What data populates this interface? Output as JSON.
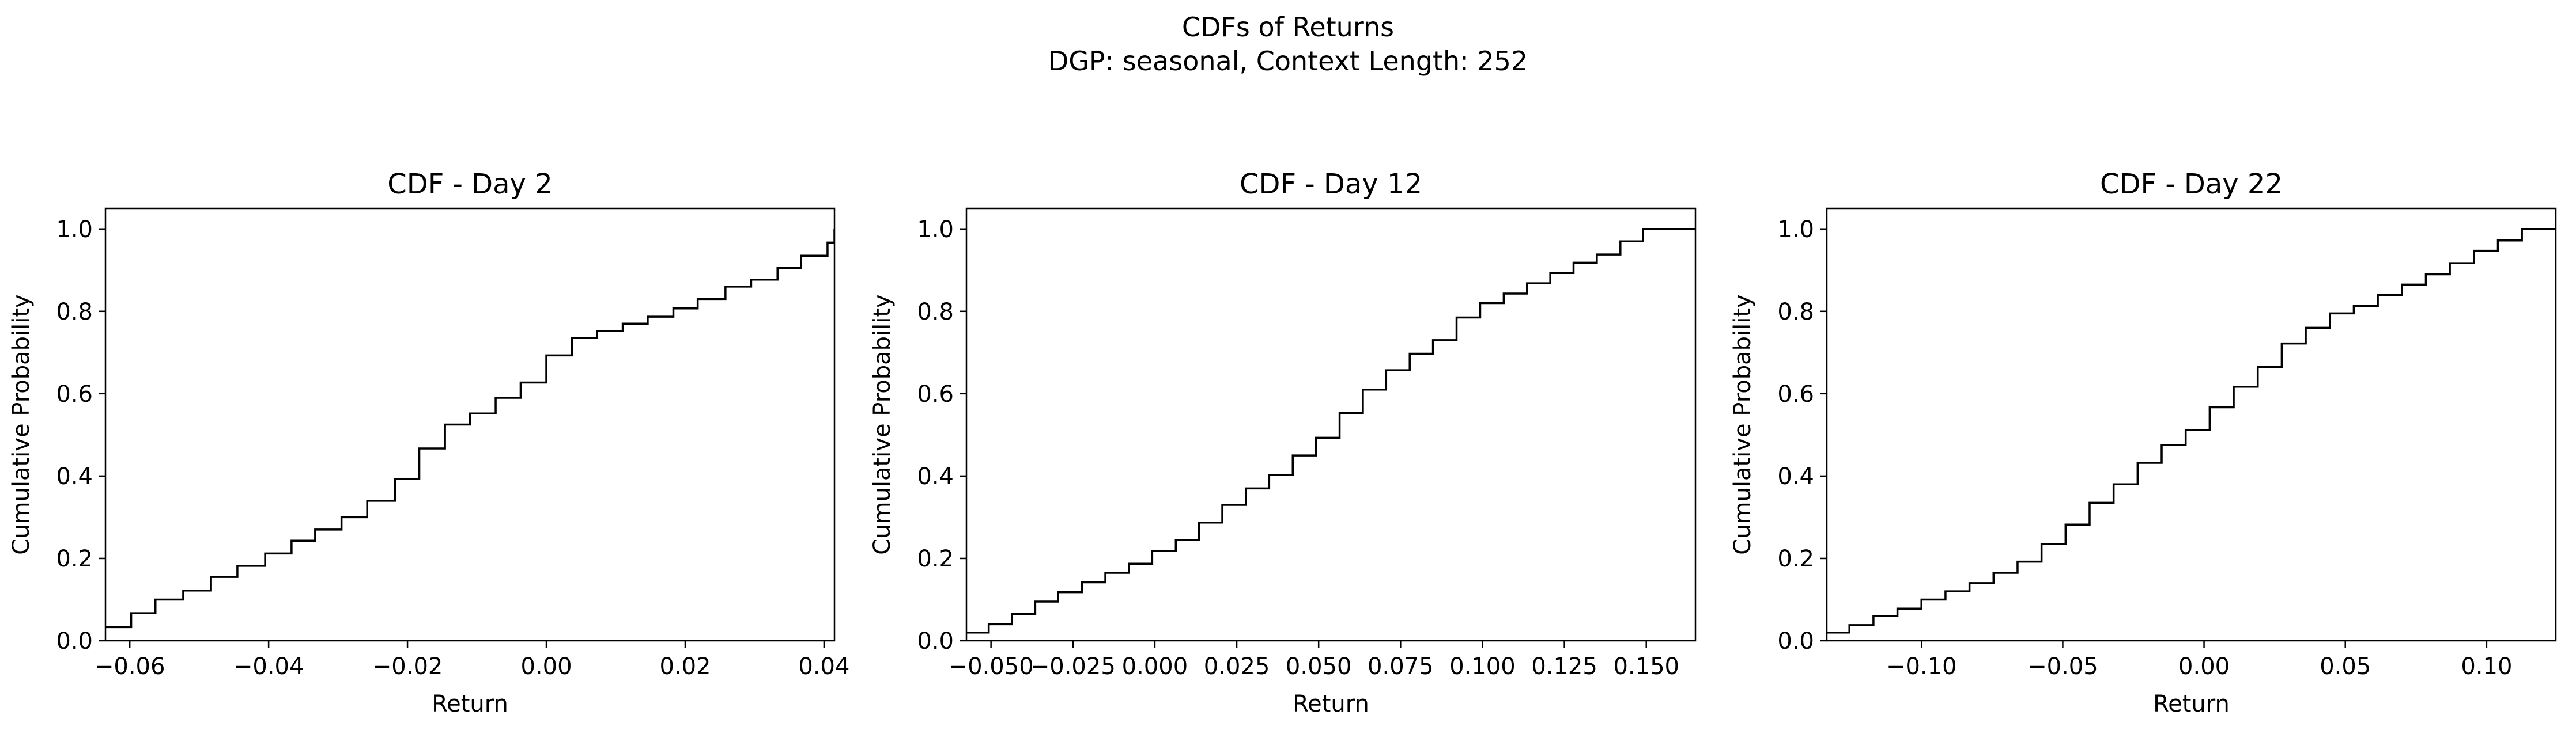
{
  "figure": {
    "title_line1": "CDFs of Returns",
    "title_line2": "DGP: seasonal, Context Length: 252"
  },
  "colors": {
    "line": "#000000",
    "axes": "#000000",
    "background": "#ffffff"
  },
  "chart_data": [
    {
      "type": "line",
      "step": "post",
      "title": "CDF - Day 2",
      "xlabel": "Return",
      "ylabel": "Cumulative Probability",
      "xlim": [
        -0.0635,
        0.0415
      ],
      "ylim": [
        0,
        1.05
      ],
      "xticks": [
        -0.06,
        -0.04,
        -0.02,
        0.0,
        0.02,
        0.04
      ],
      "xtick_labels": [
        "−0.06",
        "−0.04",
        "−0.02",
        "0.00",
        "0.02",
        "0.04"
      ],
      "yticks": [
        0.0,
        0.2,
        0.4,
        0.6,
        0.8,
        1.0
      ],
      "ytick_labels": [
        "0.0",
        "0.2",
        "0.4",
        "0.6",
        "0.8",
        "1.0"
      ],
      "grid": false,
      "x": [
        -0.0635,
        -0.0598,
        -0.0563,
        -0.0523,
        -0.0483,
        -0.0445,
        -0.0405,
        -0.0367,
        -0.0333,
        -0.0295,
        -0.0258,
        -0.0218,
        -0.0183,
        -0.0146,
        -0.011,
        -0.0073,
        -0.0037,
        0.0,
        0.0037,
        0.0073,
        0.011,
        0.0146,
        0.0183,
        0.0218,
        0.0258,
        0.0295,
        0.0333,
        0.0367,
        0.0405,
        0.0415
      ],
      "y": [
        0.033,
        0.067,
        0.1,
        0.122,
        0.155,
        0.182,
        0.212,
        0.243,
        0.27,
        0.3,
        0.34,
        0.393,
        0.467,
        0.525,
        0.552,
        0.59,
        0.627,
        0.693,
        0.735,
        0.752,
        0.77,
        0.787,
        0.807,
        0.83,
        0.86,
        0.877,
        0.905,
        0.935,
        0.967,
        1.0
      ]
    },
    {
      "type": "line",
      "step": "post",
      "title": "CDF - Day 12",
      "xlabel": "Return",
      "ylabel": "Cumulative Probability",
      "xlim": [
        -0.0575,
        0.165
      ],
      "ylim": [
        0,
        1.05
      ],
      "xticks": [
        -0.05,
        -0.025,
        0.0,
        0.025,
        0.05,
        0.075,
        0.1,
        0.125,
        0.15
      ],
      "xtick_labels": [
        "−0.050",
        "−0.025",
        "0.000",
        "0.025",
        "0.050",
        "0.075",
        "0.100",
        "0.125",
        "0.150"
      ],
      "yticks": [
        0.0,
        0.2,
        0.4,
        0.6,
        0.8,
        1.0
      ],
      "ytick_labels": [
        "0.0",
        "0.2",
        "0.4",
        "0.6",
        "0.8",
        "1.0"
      ],
      "grid": false,
      "x": [
        -0.0575,
        -0.0507,
        -0.0436,
        -0.0365,
        -0.0295,
        -0.0222,
        -0.0151,
        -0.0079,
        -0.0008,
        0.0064,
        0.0135,
        0.0206,
        0.0278,
        0.0349,
        0.0421,
        0.0492,
        0.0564,
        0.0635,
        0.0706,
        0.0778,
        0.0849,
        0.0921,
        0.0993,
        0.1065,
        0.1136,
        0.1207,
        0.1278,
        0.1349,
        0.1421,
        0.149,
        0.1563,
        0.165
      ],
      "y": [
        0.02,
        0.04,
        0.065,
        0.095,
        0.118,
        0.142,
        0.165,
        0.187,
        0.218,
        0.245,
        0.287,
        0.33,
        0.37,
        0.403,
        0.45,
        0.493,
        0.553,
        0.61,
        0.657,
        0.697,
        0.73,
        0.785,
        0.82,
        0.843,
        0.868,
        0.893,
        0.918,
        0.938,
        0.97,
        1.0,
        1.0,
        1.0
      ]
    },
    {
      "type": "line",
      "step": "post",
      "title": "CDF - Day 22",
      "xlabel": "Return",
      "ylabel": "Cumulative Probability",
      "xlim": [
        -0.1335,
        0.1245
      ],
      "ylim": [
        0,
        1.05
      ],
      "xticks": [
        -0.1,
        -0.05,
        0.0,
        0.05,
        0.1
      ],
      "xtick_labels": [
        "−0.10",
        "−0.05",
        "0.00",
        "0.05",
        "0.10"
      ],
      "yticks": [
        0.0,
        0.2,
        0.4,
        0.6,
        0.8,
        1.0
      ],
      "ytick_labels": [
        "0.0",
        "0.2",
        "0.4",
        "0.6",
        "0.8",
        "1.0"
      ],
      "grid": false,
      "x": [
        -0.1335,
        -0.1255,
        -0.117,
        -0.1085,
        -0.1,
        -0.0915,
        -0.083,
        -0.0745,
        -0.066,
        -0.0575,
        -0.049,
        -0.0405,
        -0.032,
        -0.0235,
        -0.015,
        -0.0065,
        0.002,
        0.0105,
        0.019,
        0.0275,
        0.036,
        0.0445,
        0.053,
        0.0615,
        0.07,
        0.0785,
        0.087,
        0.0955,
        0.104,
        0.1125,
        0.12,
        0.1245
      ],
      "y": [
        0.02,
        0.038,
        0.06,
        0.078,
        0.1,
        0.12,
        0.14,
        0.165,
        0.192,
        0.235,
        0.282,
        0.335,
        0.38,
        0.432,
        0.475,
        0.512,
        0.567,
        0.617,
        0.665,
        0.722,
        0.76,
        0.795,
        0.813,
        0.84,
        0.865,
        0.89,
        0.917,
        0.947,
        0.972,
        1.0,
        1.0,
        1.0
      ]
    }
  ]
}
